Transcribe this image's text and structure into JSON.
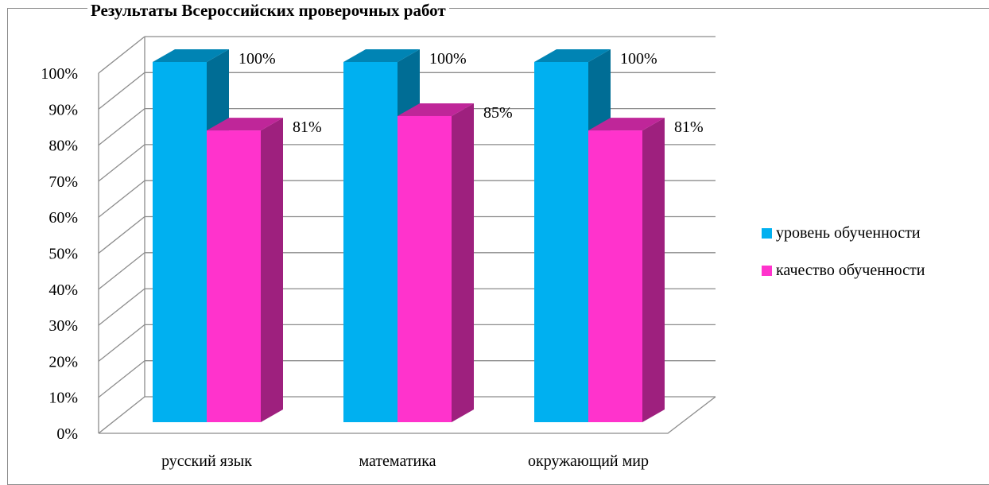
{
  "chart_data": {
    "type": "bar",
    "title": "Результаты Всероссийских проверочных работ",
    "categories": [
      "русский язык",
      "математика",
      "окружающий мир"
    ],
    "series": [
      {
        "name": "уровень обученности",
        "values": [
          100,
          100,
          100
        ],
        "labels": [
          "100%",
          "100%",
          "100%"
        ],
        "color": "#00b0f0"
      },
      {
        "name": "качество обученности",
        "values": [
          81,
          85,
          81
        ],
        "labels": [
          "81%",
          "85%",
          "81%"
        ],
        "color": "#ff33cc"
      }
    ],
    "ylim": [
      0,
      100
    ],
    "yticks": [
      "0%",
      "10%",
      "20%",
      "30%",
      "40%",
      "50%",
      "60%",
      "70%",
      "80%",
      "90%",
      "100%"
    ],
    "grid": true,
    "legend_position": "right"
  }
}
